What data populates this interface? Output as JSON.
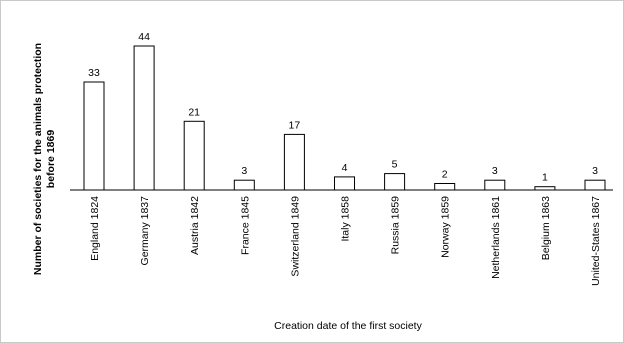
{
  "chart_data": {
    "type": "bar",
    "title": "",
    "xlabel": "Creation date of the first society",
    "ylabel_line1": "Number of societies for the animals protection",
    "ylabel_line2": "before 1869",
    "categories": [
      "England 1824",
      "Germany 1837",
      "Austria 1842",
      "France 1845",
      "Switzerland 1849",
      "Italy 1858",
      "Russia 1859",
      "Norway 1859",
      "Netherlands 1861",
      "Belgium 1863",
      "United-States 1867"
    ],
    "values": [
      33,
      44,
      21,
      3,
      17,
      4,
      5,
      2,
      3,
      1,
      3
    ],
    "data_labels": [
      "33",
      "44",
      "21",
      "3",
      "17",
      "4",
      "5",
      "2",
      "3",
      "1",
      "3"
    ],
    "ylim": [
      0,
      44
    ],
    "grid": false,
    "legend": "none",
    "colors": {
      "bar_fill": "#ffffff",
      "bar_stroke": "#000000"
    }
  }
}
